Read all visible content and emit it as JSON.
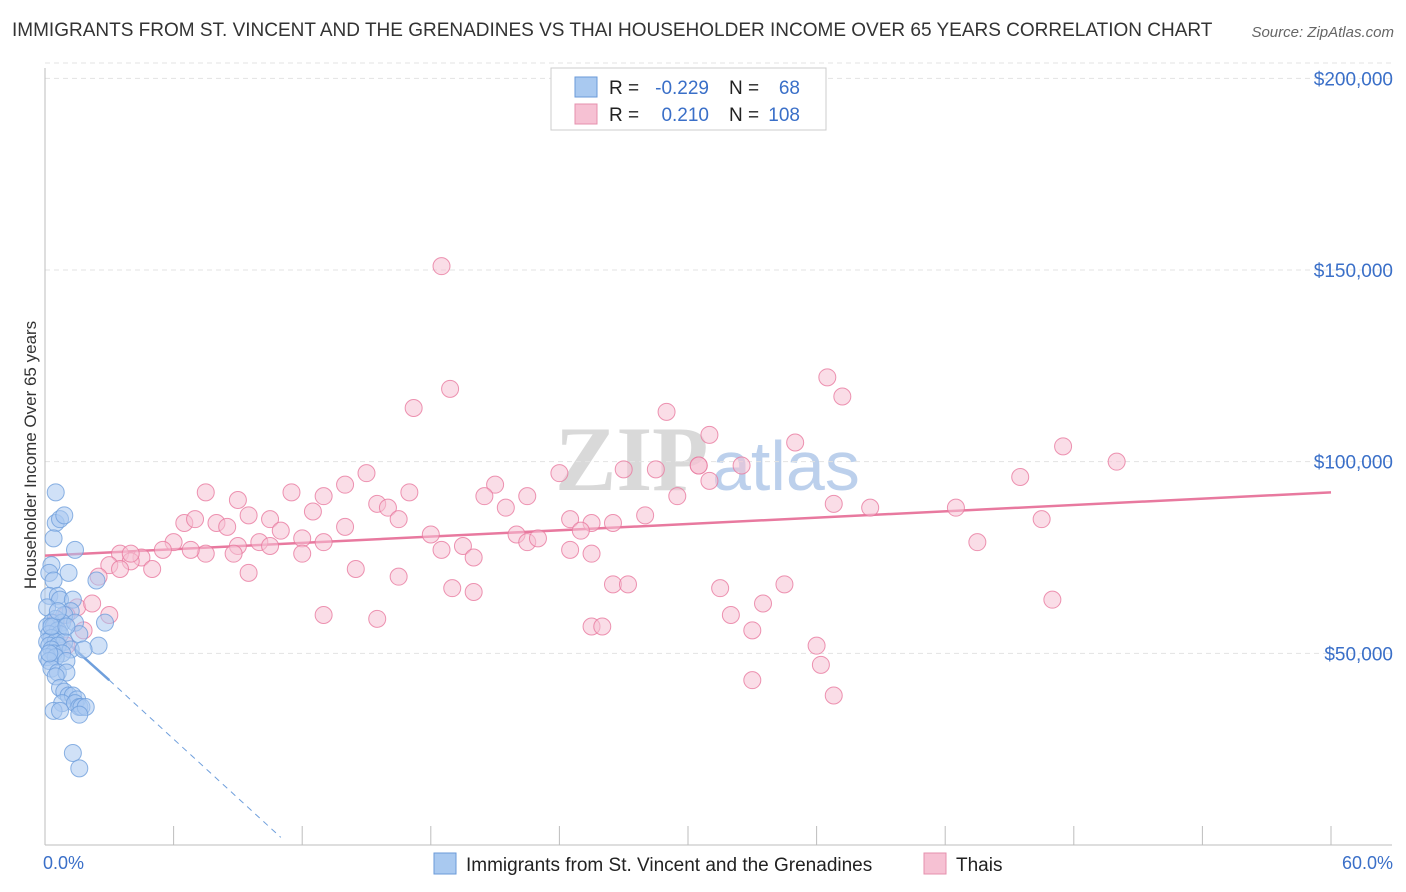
{
  "title": "IMMIGRANTS FROM ST. VINCENT AND THE GRENADINES VS THAI HOUSEHOLDER INCOME OVER 65 YEARS CORRELATION CHART",
  "source": "Source: ZipAtlas.com",
  "watermark": {
    "zip": "ZIP",
    "atlas": "atlas"
  },
  "legend": {
    "r_label": "R =",
    "n_label": "N =",
    "rows": [
      {
        "r": "-0.229",
        "n": "68",
        "color": "#a9c9f0",
        "edge": "#6a9ad8"
      },
      {
        "r": "0.210",
        "n": "108",
        "color": "#f6c1d3",
        "edge": "#e590ae"
      }
    ]
  },
  "chart_data": {
    "type": "scatter",
    "title": "IMMIGRANTS FROM ST. VINCENT AND THE GRENADINES VS THAI HOUSEHOLDER INCOME OVER 65 YEARS CORRELATION CHART",
    "xlabel": "",
    "ylabel": "Householder Income Over 65 years",
    "xlim": [
      0,
      60
    ],
    "ylim": [
      0,
      210000
    ],
    "x_tick_labels": [
      "0.0%",
      "60.0%"
    ],
    "y_ticks": [
      50000,
      100000,
      150000,
      200000
    ],
    "y_tick_labels": [
      "$50,000",
      "$100,000",
      "$150,000",
      "$200,000"
    ],
    "grid": true,
    "legend_position": "top-center",
    "series": [
      {
        "name": "Immigrants from St. Vincent and the Grenadines",
        "color": "#6f9fdc",
        "fill": "#a9c9f0",
        "r": -0.229,
        "n": 68,
        "trend": {
          "x": [
            0,
            3.0
          ],
          "y": [
            58000,
            43000
          ]
        },
        "trend_extension": {
          "x": [
            3.0,
            11.0
          ],
          "y": [
            43000,
            2000
          ]
        },
        "points": [
          [
            0.5,
            92000
          ],
          [
            0.5,
            84000
          ],
          [
            0.7,
            85000
          ],
          [
            0.9,
            86000
          ],
          [
            0.4,
            80000
          ],
          [
            1.4,
            77000
          ],
          [
            0.3,
            73000
          ],
          [
            0.2,
            71000
          ],
          [
            1.1,
            71000
          ],
          [
            0.4,
            69000
          ],
          [
            2.4,
            69000
          ],
          [
            0.2,
            65000
          ],
          [
            0.6,
            65000
          ],
          [
            0.7,
            64000
          ],
          [
            1.3,
            64000
          ],
          [
            0.1,
            62000
          ],
          [
            1.2,
            61000
          ],
          [
            0.9,
            60000
          ],
          [
            0.5,
            59000
          ],
          [
            0.3,
            58000
          ],
          [
            0.8,
            58000
          ],
          [
            1.4,
            58000
          ],
          [
            2.8,
            58000
          ],
          [
            0.1,
            57000
          ],
          [
            0.4,
            57000
          ],
          [
            0.6,
            56000
          ],
          [
            0.2,
            55000
          ],
          [
            0.7,
            55000
          ],
          [
            1.6,
            55000
          ],
          [
            0.3,
            54000
          ],
          [
            0.1,
            53000
          ],
          [
            0.5,
            53000
          ],
          [
            0.9,
            53000
          ],
          [
            0.2,
            52000
          ],
          [
            0.6,
            52000
          ],
          [
            2.5,
            52000
          ],
          [
            0.3,
            51000
          ],
          [
            1.2,
            51000
          ],
          [
            1.8,
            51000
          ],
          [
            0.4,
            50000
          ],
          [
            0.8,
            50000
          ],
          [
            0.1,
            49000
          ],
          [
            0.5,
            49000
          ],
          [
            0.2,
            48000
          ],
          [
            1.0,
            48000
          ],
          [
            0.3,
            46000
          ],
          [
            0.6,
            45000
          ],
          [
            1.0,
            45000
          ],
          [
            0.5,
            44000
          ],
          [
            0.7,
            41000
          ],
          [
            0.9,
            40000
          ],
          [
            1.1,
            39000
          ],
          [
            1.3,
            39000
          ],
          [
            1.5,
            38000
          ],
          [
            0.8,
            37000
          ],
          [
            1.4,
            37000
          ],
          [
            1.6,
            36000
          ],
          [
            1.7,
            36000
          ],
          [
            1.9,
            36000
          ],
          [
            0.4,
            35000
          ],
          [
            0.7,
            35000
          ],
          [
            1.6,
            34000
          ],
          [
            1.3,
            24000
          ],
          [
            1.6,
            20000
          ],
          [
            0.3,
            57000
          ],
          [
            0.2,
            50000
          ],
          [
            1.0,
            57000
          ],
          [
            0.6,
            61000
          ]
        ]
      },
      {
        "name": "Thais",
        "color": "#e8799f",
        "fill": "#f6c1d3",
        "r": 0.21,
        "n": 108,
        "trend": {
          "x": [
            0,
            60
          ],
          "y": [
            75500,
            92000
          ]
        },
        "points": [
          [
            18.5,
            151000
          ],
          [
            18.9,
            119000
          ],
          [
            17.2,
            114000
          ],
          [
            36.5,
            122000
          ],
          [
            37.2,
            117000
          ],
          [
            29.0,
            113000
          ],
          [
            31.0,
            107000
          ],
          [
            35.0,
            105000
          ],
          [
            47.5,
            104000
          ],
          [
            21.0,
            94000
          ],
          [
            24.0,
            97000
          ],
          [
            27.0,
            98000
          ],
          [
            28.5,
            98000
          ],
          [
            30.5,
            99000
          ],
          [
            32.5,
            99000
          ],
          [
            50.0,
            100000
          ],
          [
            45.5,
            96000
          ],
          [
            15.0,
            97000
          ],
          [
            14.0,
            94000
          ],
          [
            17.0,
            92000
          ],
          [
            11.5,
            92000
          ],
          [
            7.5,
            92000
          ],
          [
            9.0,
            90000
          ],
          [
            13.0,
            91000
          ],
          [
            20.5,
            91000
          ],
          [
            22.5,
            91000
          ],
          [
            29.5,
            91000
          ],
          [
            31.0,
            95000
          ],
          [
            36.8,
            89000
          ],
          [
            38.5,
            88000
          ],
          [
            42.5,
            88000
          ],
          [
            21.5,
            88000
          ],
          [
            15.5,
            89000
          ],
          [
            16.0,
            88000
          ],
          [
            9.5,
            86000
          ],
          [
            12.5,
            87000
          ],
          [
            16.5,
            85000
          ],
          [
            10.5,
            85000
          ],
          [
            6.5,
            84000
          ],
          [
            8.0,
            84000
          ],
          [
            8.5,
            83000
          ],
          [
            14.0,
            83000
          ],
          [
            24.5,
            85000
          ],
          [
            25.5,
            84000
          ],
          [
            26.5,
            84000
          ],
          [
            25.0,
            82000
          ],
          [
            28.0,
            86000
          ],
          [
            22.0,
            81000
          ],
          [
            18.0,
            81000
          ],
          [
            46.5,
            85000
          ],
          [
            22.5,
            79000
          ],
          [
            23.0,
            80000
          ],
          [
            19.5,
            78000
          ],
          [
            13.0,
            79000
          ],
          [
            12.0,
            80000
          ],
          [
            11.0,
            82000
          ],
          [
            10.0,
            79000
          ],
          [
            9.0,
            78000
          ],
          [
            7.5,
            76000
          ],
          [
            6.0,
            79000
          ],
          [
            5.5,
            77000
          ],
          [
            4.5,
            75000
          ],
          [
            3.5,
            76000
          ],
          [
            4.0,
            74000
          ],
          [
            5.0,
            72000
          ],
          [
            3.0,
            73000
          ],
          [
            6.8,
            77000
          ],
          [
            8.8,
            76000
          ],
          [
            10.5,
            78000
          ],
          [
            12.0,
            76000
          ],
          [
            14.5,
            72000
          ],
          [
            16.5,
            70000
          ],
          [
            18.5,
            77000
          ],
          [
            20.0,
            75000
          ],
          [
            24.5,
            77000
          ],
          [
            25.5,
            76000
          ],
          [
            26.5,
            68000
          ],
          [
            27.2,
            68000
          ],
          [
            31.5,
            67000
          ],
          [
            34.5,
            68000
          ],
          [
            43.5,
            79000
          ],
          [
            9.5,
            71000
          ],
          [
            3.5,
            72000
          ],
          [
            2.5,
            70000
          ],
          [
            1.5,
            62000
          ],
          [
            2.2,
            63000
          ],
          [
            1.0,
            60000
          ],
          [
            3.0,
            60000
          ],
          [
            0.5,
            58000
          ],
          [
            1.8,
            56000
          ],
          [
            13.0,
            60000
          ],
          [
            15.5,
            59000
          ],
          [
            19.0,
            67000
          ],
          [
            25.5,
            57000
          ],
          [
            26.0,
            57000
          ],
          [
            32.0,
            60000
          ],
          [
            33.5,
            63000
          ],
          [
            33.0,
            56000
          ],
          [
            47.0,
            64000
          ],
          [
            36.0,
            52000
          ],
          [
            36.2,
            47000
          ],
          [
            33.0,
            43000
          ],
          [
            36.8,
            39000
          ],
          [
            1.0,
            52000
          ],
          [
            4.0,
            76000
          ],
          [
            7.0,
            85000
          ],
          [
            20.0,
            66000
          ],
          [
            30.5,
            99000
          ]
        ]
      }
    ]
  }
}
